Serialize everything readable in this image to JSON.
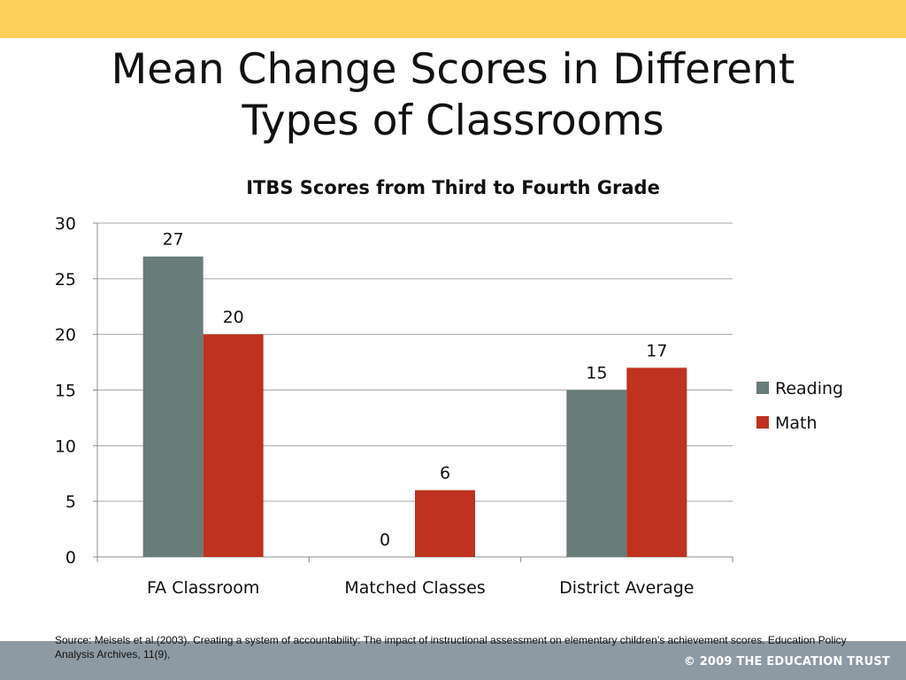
{
  "slide": {
    "title_line1": "Mean Change Scores in Different",
    "title_line2": "Types of Classrooms",
    "source_note": "Source: Meisels  et al.(2003). Creating a system of accountability: The impact of instructional assessment on elementary children’s achievement scores. Education Policy Analysis Archives, 11(9),",
    "copyright": "© 2009 THE EDUCATION TRUST",
    "colors": {
      "top_bar": "#fcd15b",
      "footer_bar": "#8e9aa3"
    }
  },
  "chart_data": {
    "type": "bar",
    "title": "ITBS Scores from Third to Fourth Grade",
    "categories": [
      "FA Classroom",
      "Matched Classes",
      "District Average"
    ],
    "series": [
      {
        "name": "Reading",
        "values": [
          27,
          0,
          15
        ],
        "color": "#687c79"
      },
      {
        "name": "Math",
        "values": [
          20,
          6,
          17
        ],
        "color": "#be321f"
      }
    ],
    "ylim": [
      0,
      30
    ],
    "yticks": [
      0,
      5,
      10,
      15,
      20,
      25,
      30
    ],
    "grid": true,
    "legend": "right",
    "data_labels": true
  }
}
